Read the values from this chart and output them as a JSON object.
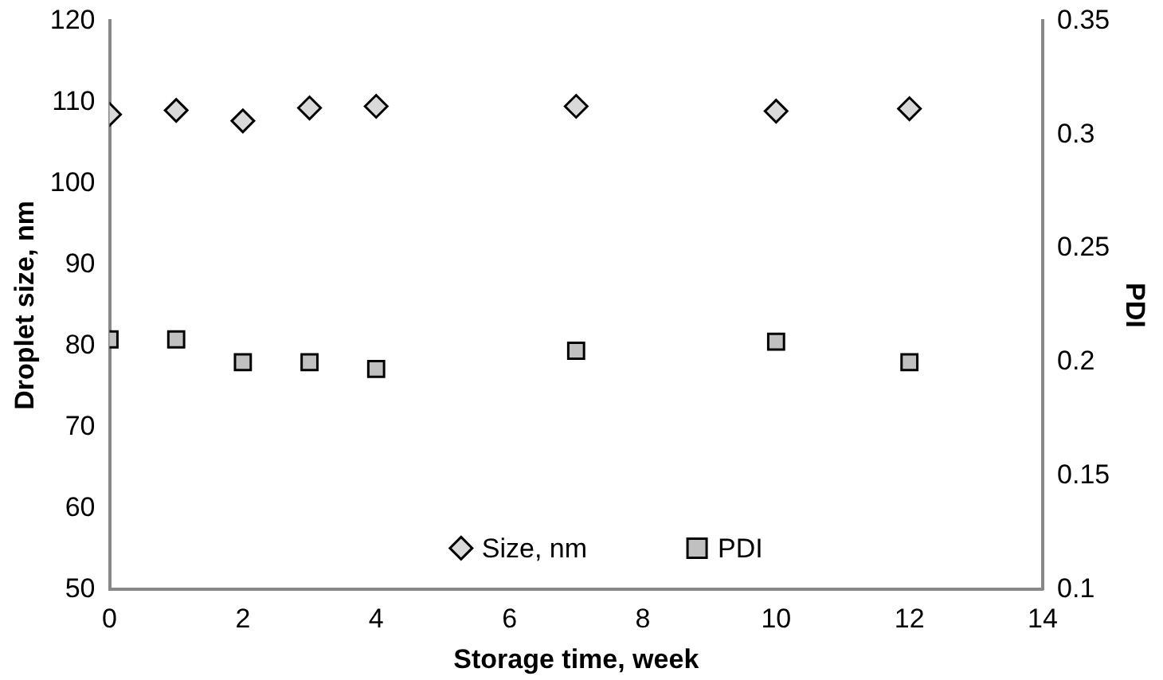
{
  "chart_data": {
    "type": "scatter",
    "xlabel": "Storage time, week",
    "ylabel": "Droplet size, nm",
    "y2label": "PDI",
    "x": [
      0,
      1,
      2,
      3,
      4,
      7,
      10,
      12
    ],
    "series": [
      {
        "name": "Size, nm",
        "color": "#d9d9d9",
        "marker": "diamond",
        "values": [
          108.5,
          109.0,
          107.7,
          109.3,
          109.5,
          109.5,
          108.9,
          109.2
        ]
      },
      {
        "name": "PDI",
        "color": "#c0c0c0",
        "marker": "square",
        "axis": "y2",
        "values": [
          0.21,
          0.21,
          0.2,
          0.2,
          0.197,
          0.205,
          0.209,
          0.2
        ]
      }
    ],
    "xlim": [
      0,
      14
    ],
    "xticks": [
      0,
      2,
      4,
      6,
      8,
      10,
      12,
      14
    ],
    "ylim": [
      50,
      120
    ],
    "yticks": [
      50,
      60,
      70,
      80,
      90,
      100,
      110,
      120
    ],
    "y2lim": [
      0.1,
      0.35
    ],
    "y2ticks": [
      0.1,
      0.15,
      0.2,
      0.25,
      0.3,
      0.35
    ],
    "grid": false,
    "legend": "bottom"
  }
}
